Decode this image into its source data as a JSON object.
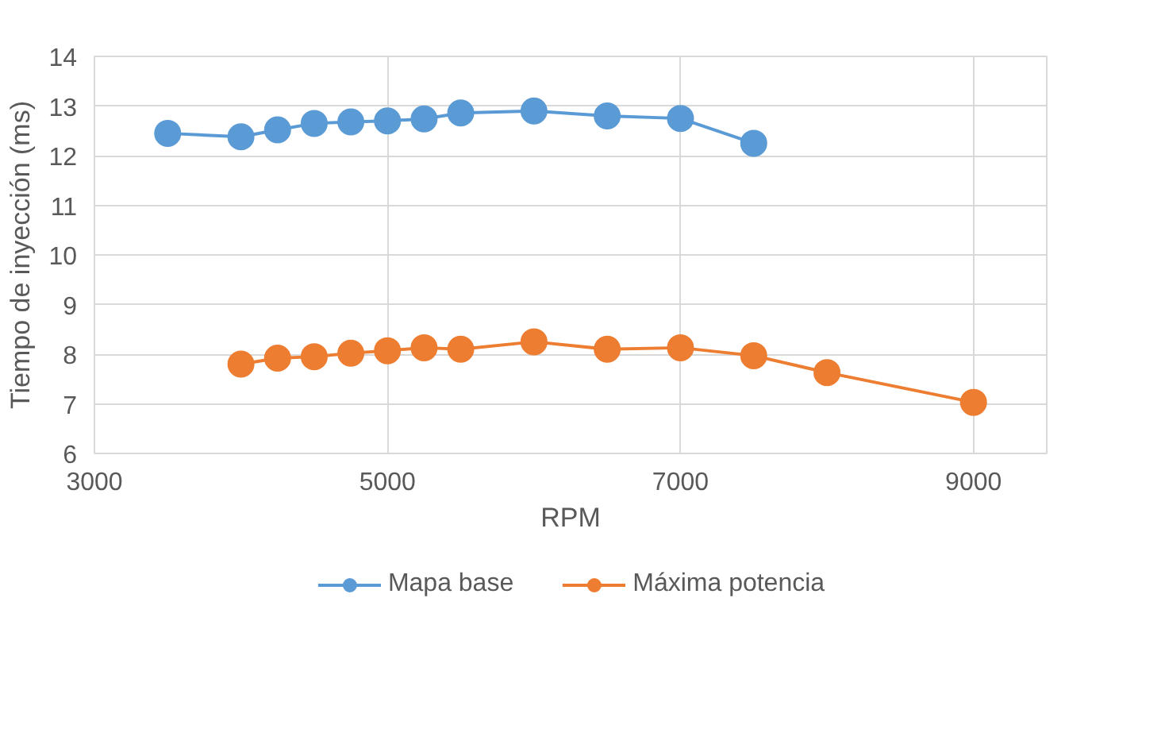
{
  "chart_data": {
    "type": "line",
    "xlabel": "RPM",
    "ylabel": "Tiempo de inyección (ms)",
    "xlim": [
      3000,
      9500
    ],
    "xticks": [
      3000,
      5000,
      7000,
      9000
    ],
    "ylim": [
      6,
      14
    ],
    "yticks": [
      6,
      7,
      8,
      9,
      10,
      11,
      12,
      13,
      14
    ],
    "grid": true,
    "legend": "bottom",
    "marker": "circle",
    "line_style": "solid",
    "series": [
      {
        "name": "Mapa base",
        "color": "#5b9bd5",
        "x": [
          3500,
          4000,
          4250,
          4500,
          4750,
          5000,
          5250,
          5500,
          6000,
          6500,
          7000,
          7500
        ],
        "values": [
          12.45,
          12.38,
          12.52,
          12.65,
          12.68,
          12.7,
          12.74,
          12.86,
          12.9,
          12.8,
          12.75,
          12.25
        ]
      },
      {
        "name": "Máxima potencia",
        "color": "#ed7d31",
        "x": [
          4000,
          4250,
          4500,
          4750,
          5000,
          5250,
          5500,
          6000,
          6500,
          7000,
          7500,
          8000,
          9000
        ],
        "values": [
          7.8,
          7.92,
          7.95,
          8.02,
          8.07,
          8.13,
          8.1,
          8.25,
          8.1,
          8.13,
          7.97,
          7.63,
          7.03
        ]
      }
    ]
  }
}
